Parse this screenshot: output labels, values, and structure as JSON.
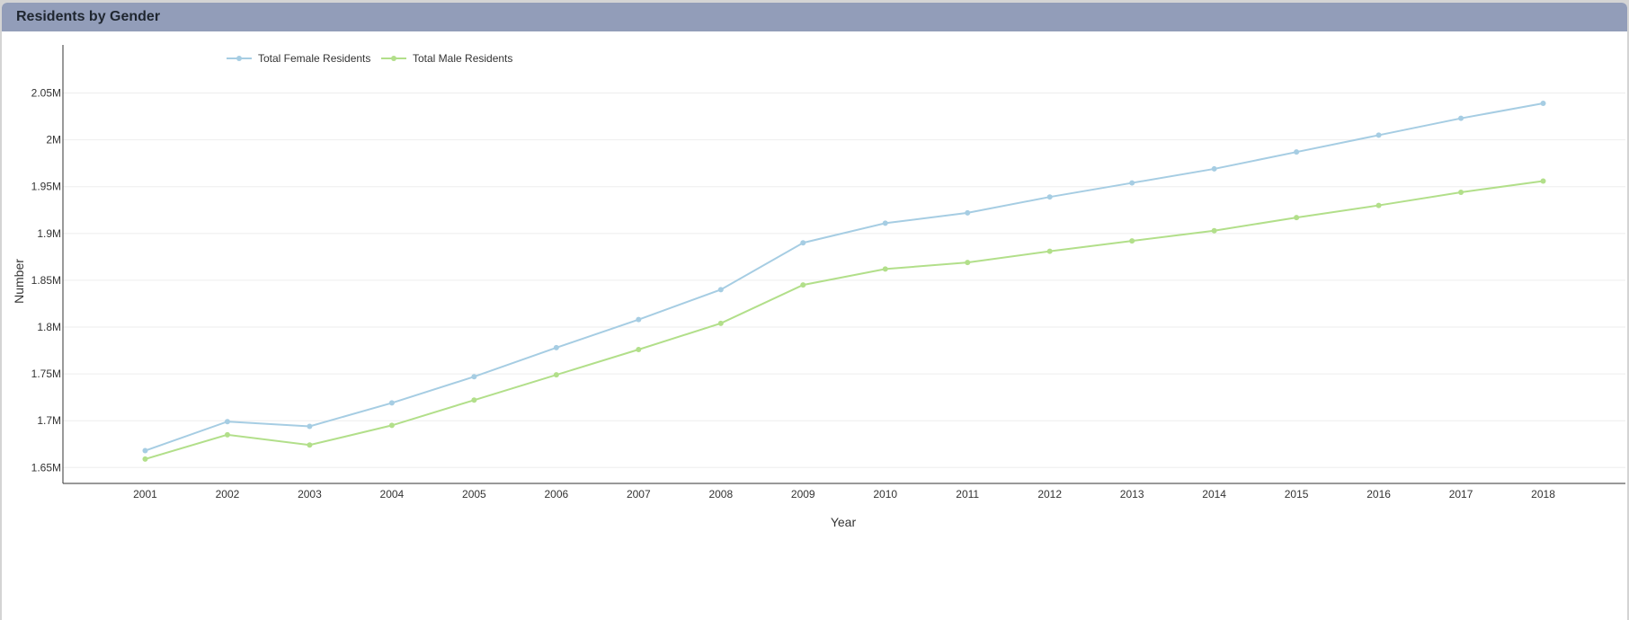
{
  "panel": {
    "title": "Residents by Gender"
  },
  "chart_data": {
    "type": "line",
    "title": "Residents by Gender",
    "xlabel": "Year",
    "ylabel": "Number",
    "x": [
      2001,
      2002,
      2003,
      2004,
      2005,
      2006,
      2007,
      2008,
      2009,
      2010,
      2011,
      2012,
      2013,
      2014,
      2015,
      2016,
      2017,
      2018
    ],
    "xlim": [
      2000,
      2019
    ],
    "ylim": [
      1633000,
      2063000
    ],
    "yticks": [
      1650000,
      1700000,
      1750000,
      1800000,
      1850000,
      1900000,
      1950000,
      2000000,
      2050000
    ],
    "ytick_labels": [
      "1.65M",
      "1.7M",
      "1.75M",
      "1.8M",
      "1.85M",
      "1.9M",
      "1.95M",
      "2M",
      "2.05M"
    ],
    "grid": true,
    "legend_position": "top-left",
    "series": [
      {
        "name": "Total Female Residents",
        "color": "#a6cde3",
        "values": [
          1668000,
          1699000,
          1694000,
          1719000,
          1747000,
          1778000,
          1808000,
          1840000,
          1890000,
          1911000,
          1922000,
          1939000,
          1954000,
          1969000,
          1987000,
          2005000,
          2023000,
          2039000
        ]
      },
      {
        "name": "Total Male Residents",
        "color": "#b2df8a",
        "values": [
          1659000,
          1685000,
          1674000,
          1695000,
          1722000,
          1749000,
          1776000,
          1804000,
          1845000,
          1862000,
          1869000,
          1881000,
          1892000,
          1903000,
          1917000,
          1930000,
          1944000,
          1956000
        ]
      }
    ]
  }
}
